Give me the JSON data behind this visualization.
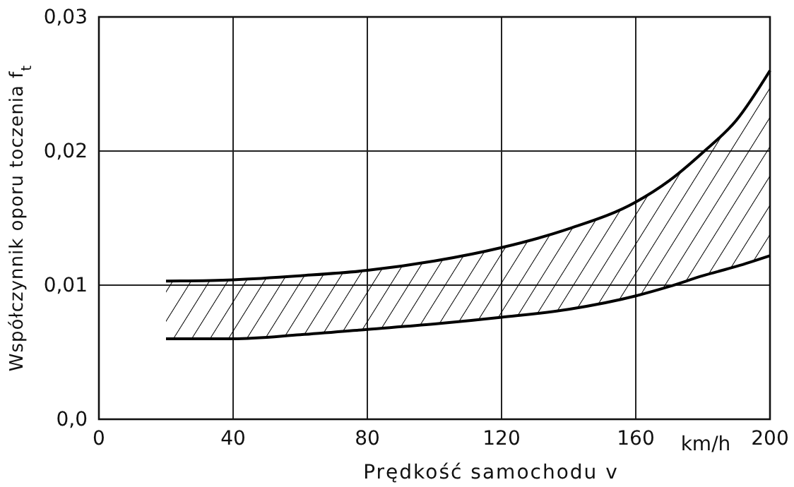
{
  "chart_data": {
    "type": "line",
    "xlabel": "Prędkość samochodu v",
    "ylabel": "Współczynnik oporu toczenia f$_{t}$",
    "annotations": [
      "km/h"
    ],
    "xlim": [
      0,
      200
    ],
    "xticks": [
      0,
      40,
      80,
      120,
      160,
      200
    ],
    "ylim": [
      0,
      0.03
    ],
    "yticks": [
      {
        "value": 0,
        "label": "0,0"
      },
      {
        "value": 0.01,
        "label": "0,01"
      },
      {
        "value": 0.02,
        "label": "0,02"
      },
      {
        "value": 0.03,
        "label": "0,03"
      }
    ],
    "grid": true,
    "line_style": "solid",
    "marker": "none",
    "series": [
      {
        "color": "#000000",
        "x": [
          20,
          40,
          60,
          80,
          100,
          120,
          140,
          160,
          170,
          180,
          190,
          200
        ],
        "values": [
          0.0103,
          0.0104,
          0.0107,
          0.0111,
          0.0118,
          0.0128,
          0.0142,
          0.0162,
          0.0178,
          0.0199,
          0.0223,
          0.026
        ],
        "upper": [
          0.0103,
          0.0104,
          0.0107,
          0.0111,
          0.0118,
          0.0128,
          0.0142,
          0.0162,
          0.0178,
          0.0199,
          0.0223,
          0.026
        ],
        "lower": [
          0.006,
          0.006,
          0.0063,
          0.0067,
          0.0071,
          0.0076,
          0.0082,
          0.0092,
          0.0099,
          0.0107,
          0.0114,
          0.0122
        ]
      },
      {
        "color": "#000000",
        "x": [
          20,
          40,
          60,
          80,
          100,
          120,
          140,
          160,
          170,
          180,
          190,
          200
        ],
        "values": [
          0.006,
          0.006,
          0.0063,
          0.0067,
          0.0071,
          0.0076,
          0.0082,
          0.0092,
          0.0099,
          0.0107,
          0.0114,
          0.0122
        ]
      }
    ]
  }
}
